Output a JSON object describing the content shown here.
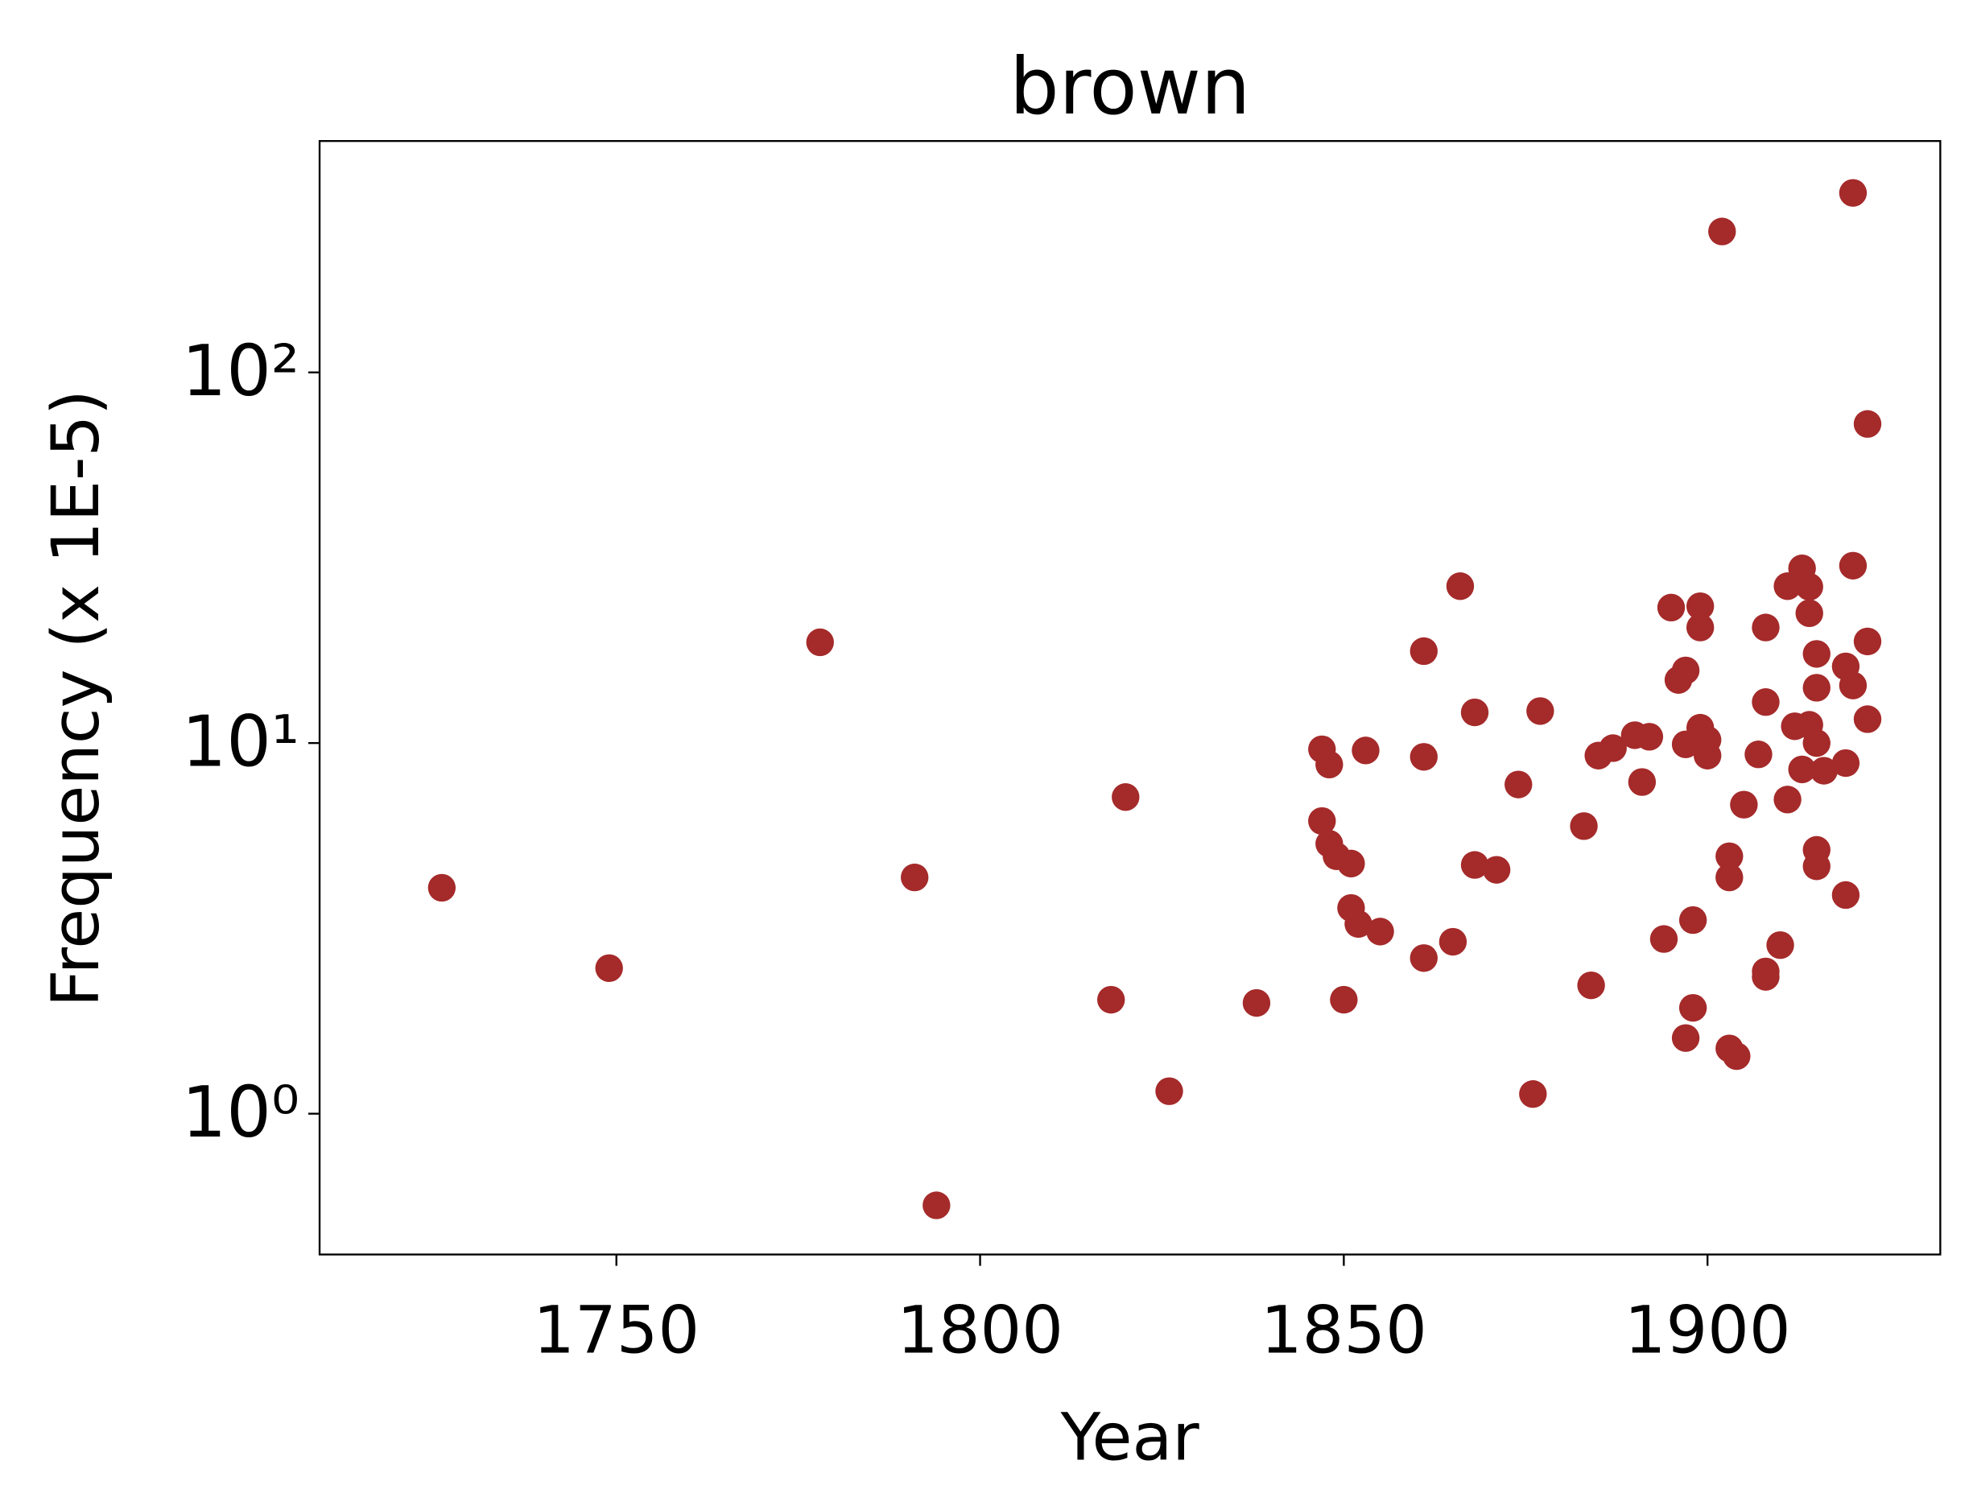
{
  "chart_data": {
    "type": "scatter",
    "title": "brown",
    "x_label": "Year",
    "y_label": "Frequency (x 1E-5)",
    "log_y": true,
    "grid": false,
    "xlim": [
      1709.2,
      1932.0
    ],
    "ylim": [
      0.417,
      421
    ],
    "xticks": [
      1750,
      1800,
      1850,
      1900
    ],
    "yticks": [
      {
        "value": 1,
        "label": "10⁰"
      },
      {
        "value": 10,
        "label": "10¹"
      },
      {
        "value": 100,
        "label": "10²"
      }
    ],
    "series": [
      {
        "name": "brown",
        "color": "#a52a2a",
        "x": [
          1726,
          1749,
          1778,
          1791,
          1794,
          1818,
          1820,
          1826,
          1838,
          1847,
          1848,
          1847,
          1848,
          1849,
          1851,
          1850,
          1851,
          1852,
          1853,
          1855,
          1861,
          1861,
          1861,
          1865,
          1866,
          1868,
          1868,
          1871,
          1874,
          1876,
          1877,
          1883,
          1884,
          1885,
          1887,
          1890,
          1892,
          1891,
          1894,
          1895,
          1896,
          1897,
          1897,
          1897,
          1898,
          1898,
          1899,
          1899,
          1899,
          1900,
          1900,
          1902,
          1903,
          1903,
          1903,
          1904,
          1905,
          1907,
          1908,
          1908,
          1908,
          1908,
          1910,
          1911,
          1911,
          1912,
          1913,
          1913,
          1914,
          1914,
          1914,
          1915,
          1915,
          1915,
          1915,
          1915,
          1916,
          1919,
          1919,
          1919,
          1920,
          1920,
          1920,
          1922,
          1922,
          1922
        ],
        "values": [
          4.07,
          2.47,
          18.7,
          4.34,
          0.566,
          2.03,
          7.15,
          1.15,
          1.99,
          9.62,
          8.75,
          6.16,
          5.35,
          4.95,
          4.73,
          2.03,
          3.59,
          3.25,
          9.55,
          3.1,
          17.7,
          9.18,
          2.63,
          2.91,
          26.5,
          12.1,
          4.69,
          4.55,
          7.73,
          1.13,
          12.2,
          5.97,
          2.22,
          9.25,
          9.69,
          10.5,
          10.4,
          7.85,
          2.96,
          23.2,
          14.8,
          15.7,
          1.6,
          9.92,
          3.33,
          1.93,
          23.4,
          20.5,
          11.0,
          10.2,
          9.25,
          240,
          4.95,
          4.34,
          1.5,
          1.43,
          6.82,
          9.32,
          20.5,
          12.9,
          2.42,
          2.34,
          2.85,
          7.04,
          26.5,
          11.1,
          29.6,
          8.49,
          26.4,
          22.4,
          11.2,
          17.4,
          14.1,
          10.0,
          5.15,
          4.65,
          8.42,
          16.1,
          8.83,
          3.89,
          305,
          30.1,
          14.3,
          72.6,
          18.8,
          11.6
        ]
      }
    ]
  }
}
